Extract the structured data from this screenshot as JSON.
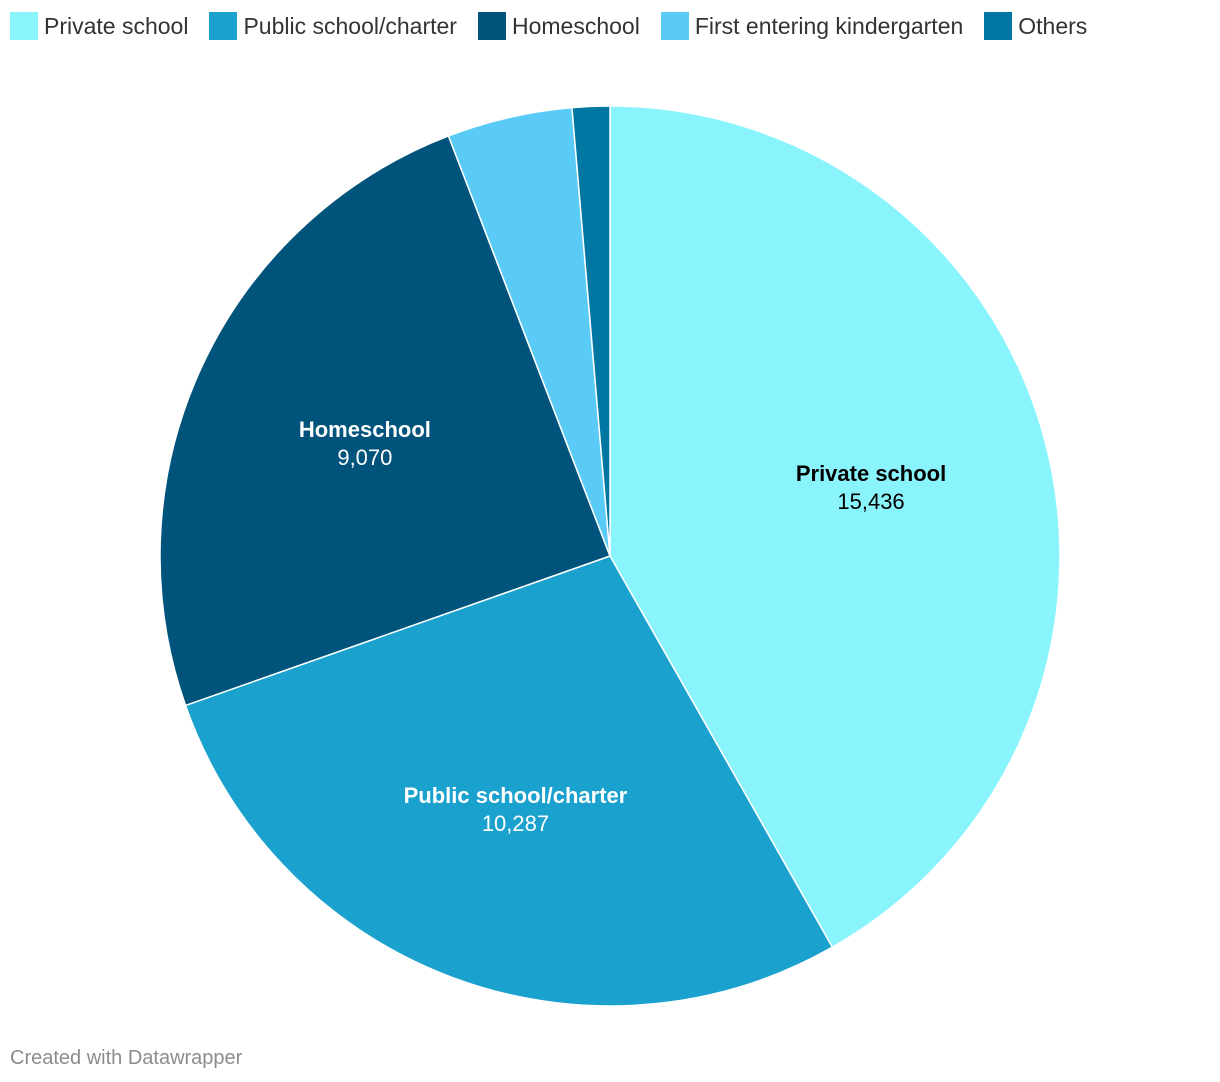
{
  "chart_data": {
    "type": "pie",
    "title": "",
    "categories": [
      "Private school",
      "Public school/charter",
      "Homeschool",
      "First entering kindergarten",
      "Others"
    ],
    "values": [
      15436,
      10287,
      9070,
      1661,
      498
    ],
    "value_labels": [
      "15,436",
      "10,287",
      "9,070",
      "",
      ""
    ],
    "colors": [
      "#8af4fd",
      "#1aa1cd",
      "#00537a",
      "#5acaf7",
      "#0076a3"
    ],
    "label_colors": [
      "#000000",
      "#ffffff",
      "#ffffff",
      "",
      ""
    ],
    "legend_position": "top-left"
  },
  "footer": {
    "credit": "Created with Datawrapper"
  }
}
